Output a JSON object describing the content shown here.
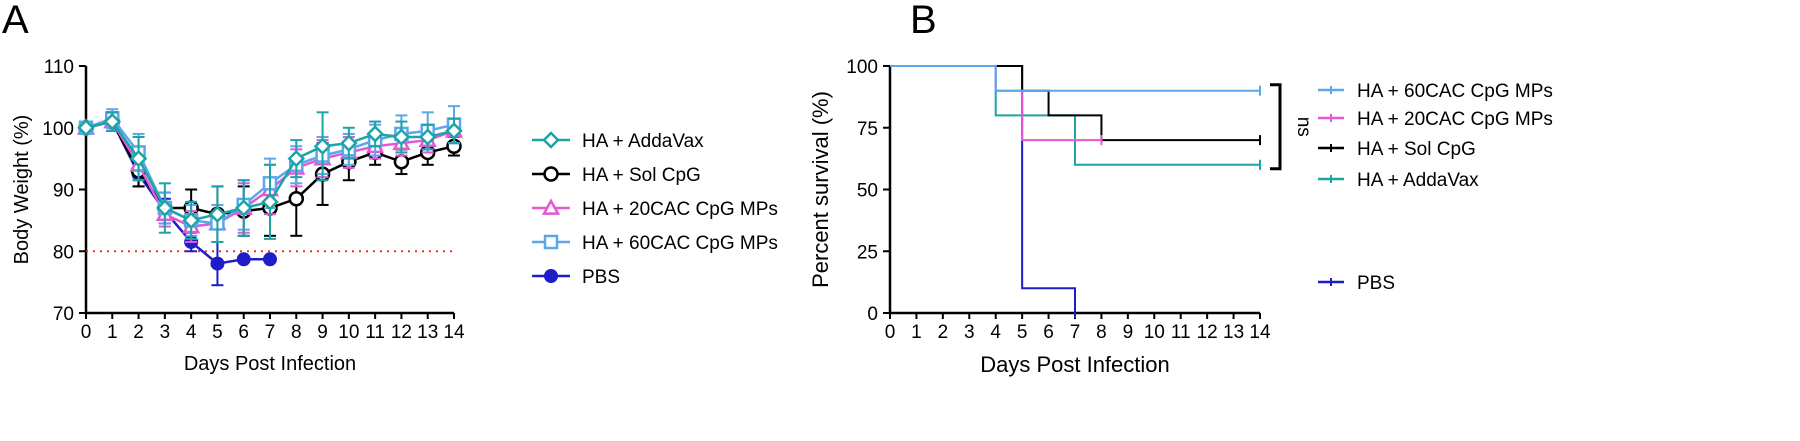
{
  "panels": {
    "a_letter": "A",
    "b_letter": "B"
  },
  "chart_data": [
    {
      "id": "A",
      "type": "line",
      "xlabel": "Days Post Infection",
      "ylabel": "Body Weight (%)",
      "xlim": [
        0,
        14
      ],
      "ylim": [
        70,
        110
      ],
      "xticks": [
        0,
        1,
        2,
        3,
        4,
        5,
        6,
        7,
        8,
        9,
        10,
        11,
        12,
        13,
        14
      ],
      "yticks": [
        70,
        80,
        90,
        100,
        110
      ],
      "reference_line": {
        "y": 80,
        "color": "#e8322a",
        "style": "dotted"
      },
      "legend_position": "right",
      "series": [
        {
          "name": "HA + AddaVax",
          "color": "#1ea3a8",
          "marker": "diamond-open",
          "x": [
            0,
            1,
            2,
            3,
            4,
            5,
            6,
            7,
            8,
            9,
            10,
            11,
            12,
            13,
            14
          ],
          "y": [
            100,
            101,
            95,
            87,
            85,
            86,
            87,
            88,
            95,
            97,
            97.5,
            99,
            98.5,
            98.5,
            99.5
          ],
          "err": [
            0.5,
            1.5,
            3.5,
            4,
            3,
            4.5,
            4.5,
            6,
            3,
            5.5,
            2.5,
            2,
            2.5,
            2,
            2
          ]
        },
        {
          "name": "HA + Sol CpG",
          "color": "#000000",
          "marker": "circle-open",
          "x": [
            0,
            1,
            2,
            3,
            4,
            5,
            6,
            7,
            8,
            9,
            10,
            11,
            12,
            13,
            14
          ],
          "y": [
            100,
            101,
            93,
            87,
            87,
            86,
            86.5,
            87,
            88.5,
            92.5,
            94.5,
            96,
            94.5,
            96,
            97
          ],
          "err": [
            0.5,
            1.5,
            2.5,
            2.5,
            3,
            4.5,
            4,
            4.5,
            6,
            5,
            3,
            2,
            2,
            2,
            1.5
          ]
        },
        {
          "name": "HA + 20CAC CpG MPs",
          "color": "#e458d4",
          "marker": "triangle-open",
          "x": [
            0,
            1,
            2,
            3,
            4,
            5,
            6,
            7,
            8,
            9,
            10,
            11,
            12,
            13,
            14
          ],
          "y": [
            100,
            101,
            94,
            86,
            84,
            84.5,
            87,
            90,
            93.5,
            95,
            96,
            97,
            97.5,
            98,
            99.5
          ],
          "err": [
            0.5,
            1.5,
            2.5,
            2,
            2.5,
            3,
            4,
            4,
            3,
            3,
            2.5,
            2,
            2,
            2,
            2
          ]
        },
        {
          "name": "HA + 60CAC CpG MPs",
          "color": "#5aa8ea",
          "marker": "square-open",
          "x": [
            0,
            1,
            2,
            3,
            4,
            5,
            6,
            7,
            8,
            9,
            10,
            11,
            12,
            13,
            14
          ],
          "y": [
            100,
            101.5,
            96,
            87,
            85,
            84.5,
            87.5,
            91,
            94,
            95.5,
            96.5,
            98,
            99,
            99.5,
            100.5
          ],
          "err": [
            0.5,
            1.5,
            3,
            2.5,
            2.5,
            3,
            4,
            4,
            3,
            3,
            2.5,
            2.5,
            3,
            3,
            3
          ]
        },
        {
          "name": "PBS",
          "color": "#1e1ec8",
          "marker": "circle-filled",
          "x": [
            0,
            1,
            2,
            3,
            4,
            5,
            6,
            7
          ],
          "y": [
            100,
            101,
            92.5,
            86.5,
            81.5,
            78,
            78.7,
            78.7
          ],
          "err": [
            0.5,
            1,
            2,
            2,
            1.5,
            3.5,
            0,
            0
          ]
        }
      ]
    },
    {
      "id": "B",
      "type": "line",
      "step": true,
      "xlabel": "Days Post Infection",
      "ylabel": "Percent survival (%)",
      "xlim": [
        0,
        14
      ],
      "ylim": [
        0,
        100
      ],
      "xticks": [
        0,
        1,
        2,
        3,
        4,
        5,
        6,
        7,
        8,
        9,
        10,
        11,
        12,
        13,
        14
      ],
      "yticks": [
        0,
        25,
        50,
        75,
        100
      ],
      "significance": {
        "label": "ns",
        "y_range": [
          60,
          90
        ]
      },
      "legend_position": "right",
      "series": [
        {
          "name": "HA + 60CAC CpG MPs",
          "color": "#5aa8ea",
          "x": [
            0,
            4,
            14
          ],
          "y": [
            100,
            90,
            90
          ]
        },
        {
          "name": "HA + 20CAC CpG MPs",
          "color": "#e458d4",
          "x": [
            0,
            4,
            5,
            8
          ],
          "y": [
            100,
            90,
            70,
            70
          ]
        },
        {
          "name": "HA + Sol CpG",
          "color": "#000000",
          "x": [
            0,
            5,
            6,
            8,
            14
          ],
          "y": [
            100,
            90,
            80,
            70,
            70
          ]
        },
        {
          "name": "HA + AddaVax",
          "color": "#1ea3a8",
          "x": [
            0,
            4,
            7,
            14
          ],
          "y": [
            100,
            80,
            60,
            60
          ]
        },
        {
          "name": "PBS",
          "color": "#1e1ec8",
          "x": [
            0,
            5,
            7
          ],
          "y": [
            100,
            10,
            0
          ]
        }
      ]
    }
  ]
}
